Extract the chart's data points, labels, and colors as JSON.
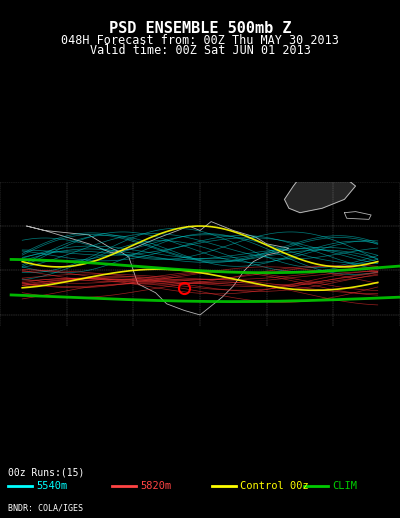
{
  "title_line1": "PSD ENSEMBLE 500mb Z",
  "title_line2": "048H Forecast from: 00Z Thu MAY 30 2013",
  "title_line3": "Valid time: 00Z Sat JUN 01 2013",
  "legend_items": [
    {
      "label": "5540m",
      "color": "#00ffff"
    },
    {
      "label": "5820m",
      "color": "#ff4444"
    },
    {
      "label": "Control 00z",
      "color": "#ffff00"
    },
    {
      "label": "CLIM",
      "color": "#00cc00"
    }
  ],
  "legend_prefix": "00z Runs:(15)",
  "footer_text": "BNDR: COLA/IGES",
  "bg_color": "#000000",
  "text_color": "#ffffff",
  "map_bg": "#000000",
  "figsize": [
    4.0,
    5.18
  ],
  "dpi": 100
}
